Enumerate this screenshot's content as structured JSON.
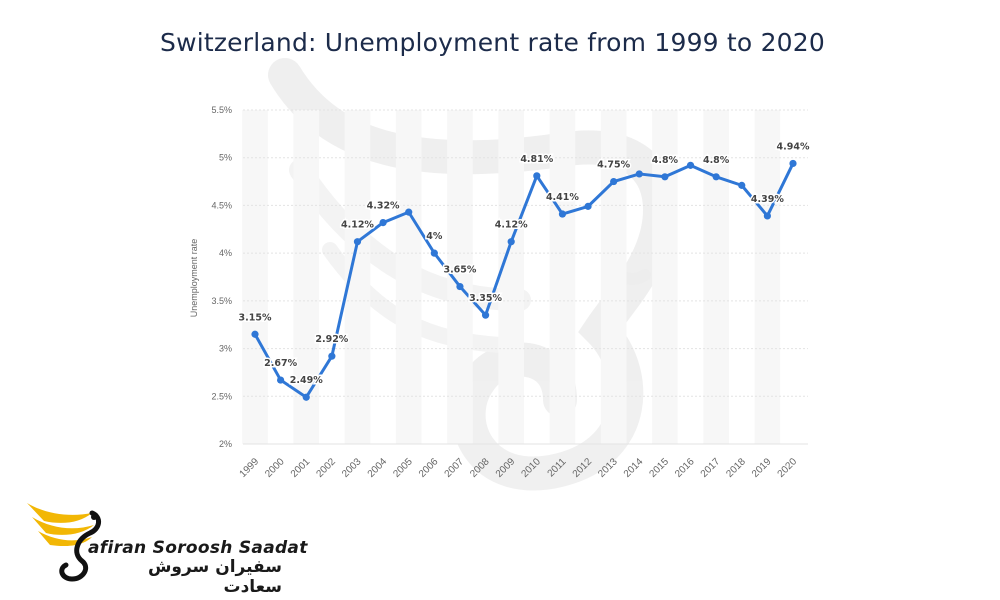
{
  "chart_data": {
    "type": "line",
    "title": "Switzerland: Unemployment rate from 1999 to 2020",
    "ylabel": "Unemployment rate",
    "xlabel": "",
    "ylim": [
      2,
      5.5
    ],
    "grid": true,
    "y_ticks": [
      "2%",
      "2.5%",
      "3%",
      "3.5%",
      "4%",
      "4.5%",
      "5%",
      "5.5%"
    ],
    "y_tick_values": [
      2,
      2.5,
      3,
      3.5,
      4,
      4.5,
      5,
      5.5
    ],
    "x": [
      "1999",
      "2000",
      "2001",
      "2002",
      "2003",
      "2004",
      "2005",
      "2006",
      "2007",
      "2008",
      "2009",
      "2010",
      "2011",
      "2012",
      "2013",
      "2014",
      "2015",
      "2016",
      "2017",
      "2018",
      "2019",
      "2020"
    ],
    "values": [
      3.15,
      2.67,
      2.49,
      2.92,
      4.12,
      4.32,
      4.43,
      4.0,
      3.65,
      3.35,
      4.12,
      4.81,
      4.41,
      4.49,
      4.75,
      4.83,
      4.8,
      4.92,
      4.8,
      4.71,
      4.39,
      4.94
    ],
    "data_labels": [
      "3.15%",
      "2.67%",
      "2.49%",
      "2.92%",
      "4.12%",
      "4.32%",
      "",
      "4%",
      "3.65%",
      "3.35%",
      "4.12%",
      "4.81%",
      "4.41%",
      "",
      "4.75%",
      "",
      "4.8%",
      "",
      "4.8%",
      "",
      "4.39%",
      "4.94%"
    ],
    "line_color": "#2f77d6"
  },
  "logo": {
    "name_en": "afiran Soroosh Saadat",
    "name_fa": "سفیران سروش سعادت",
    "accent_color": "#f2b705"
  }
}
